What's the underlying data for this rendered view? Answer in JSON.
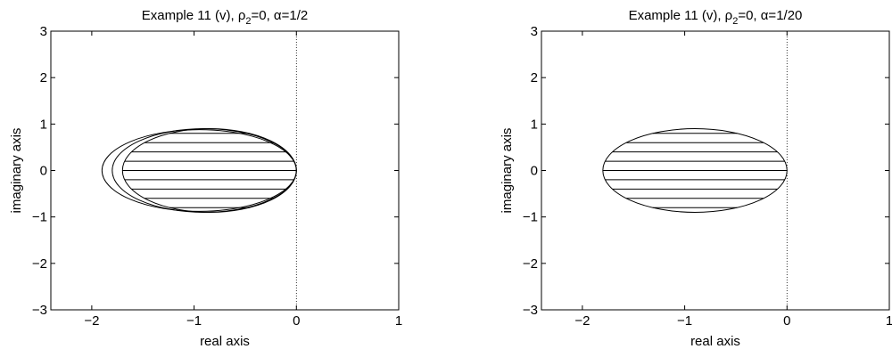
{
  "chart_data": [
    {
      "type": "region-plot",
      "title_main": "Example 11 (v), ρ",
      "title_sub": "2",
      "title_rest": "=0, α=1/2",
      "xlabel": "real axis",
      "ylabel": "imaginary axis",
      "xlim": [
        -2.4,
        1
      ],
      "ylim": [
        -3,
        3
      ],
      "xticks": [
        -2,
        -1,
        0,
        1
      ],
      "yticks": [
        -3,
        -2,
        -1,
        0,
        1,
        2,
        3
      ],
      "xtick_labels": [
        "−2",
        "−1",
        "0",
        "1"
      ],
      "ytick_labels": [
        "−3",
        "−2",
        "−1",
        "0",
        "1",
        "2",
        "3"
      ],
      "reference_line_x": 0,
      "ellipses": [
        {
          "center": [
            -0.85,
            0
          ],
          "semi_axis_real": 0.85,
          "semi_axis_imag": 0.9
        },
        {
          "center": [
            -0.9,
            0
          ],
          "semi_axis_real": 0.9,
          "semi_axis_imag": 0.9
        },
        {
          "center": [
            -0.95,
            0
          ],
          "semi_axis_real": 0.95,
          "semi_axis_imag": 0.88
        }
      ],
      "hatch_levels": [
        -0.8,
        -0.6,
        -0.4,
        -0.2,
        0,
        0.2,
        0.4,
        0.6,
        0.8
      ]
    },
    {
      "type": "region-plot",
      "title_main": "Example 11 (v), ρ",
      "title_sub": "2",
      "title_rest": "=0, α=1/20",
      "xlabel": "real axis",
      "ylabel": "imaginary axis",
      "xlim": [
        -2.4,
        1
      ],
      "ylim": [
        -3,
        3
      ],
      "xticks": [
        -2,
        -1,
        0,
        1
      ],
      "yticks": [
        -3,
        -2,
        -1,
        0,
        1,
        2,
        3
      ],
      "xtick_labels": [
        "−2",
        "−1",
        "0",
        "1"
      ],
      "ytick_labels": [
        "−3",
        "−2",
        "−1",
        "0",
        "1",
        "2",
        "3"
      ],
      "reference_line_x": 0,
      "ellipses": [
        {
          "center": [
            -0.9,
            0
          ],
          "semi_axis_real": 0.9,
          "semi_axis_imag": 0.9
        }
      ],
      "hatch_levels": [
        -0.8,
        -0.6,
        -0.4,
        -0.2,
        0,
        0.2,
        0.4,
        0.6,
        0.8
      ]
    }
  ]
}
